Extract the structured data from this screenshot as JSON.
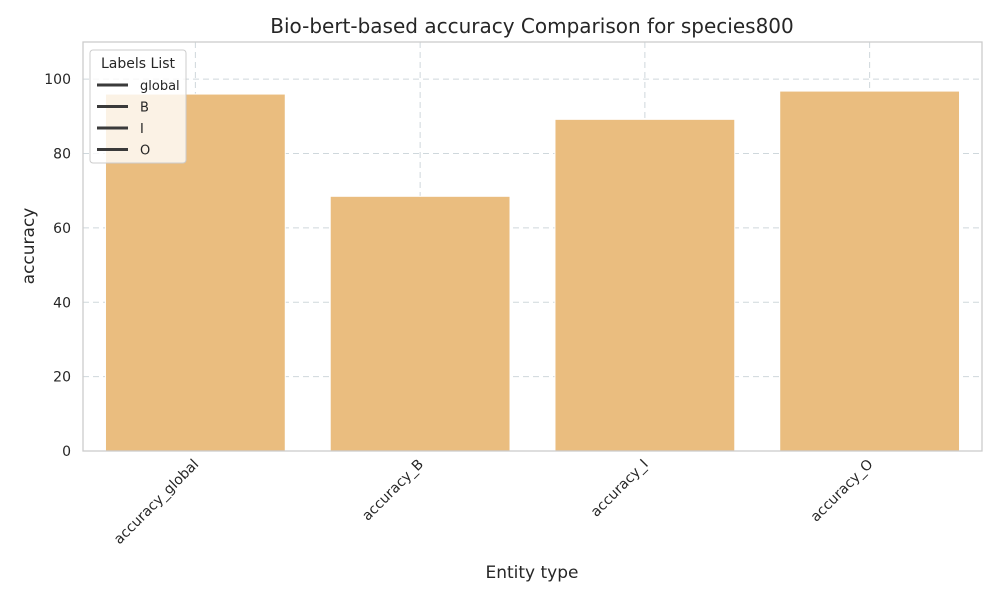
{
  "chart_data": {
    "type": "bar",
    "title": "Bio-bert-based  accuracy Comparison for species800",
    "xlabel": "Entity type",
    "ylabel": "accuracy",
    "categories": [
      "accuracy_global",
      "accuracy_B",
      "accuracy_I",
      "accuracy_O"
    ],
    "values": [
      96.0,
      68.5,
      89.2,
      96.8
    ],
    "ylim": [
      0,
      110
    ],
    "yticks": [
      0,
      20,
      40,
      60,
      80,
      100
    ],
    "grid": true,
    "bar_color": "#eabd7f",
    "legend": {
      "title": "Labels List",
      "placement": "top-left",
      "entries": [
        "global",
        "B",
        "I",
        "O"
      ],
      "line_color": "#3a3a3a"
    }
  }
}
